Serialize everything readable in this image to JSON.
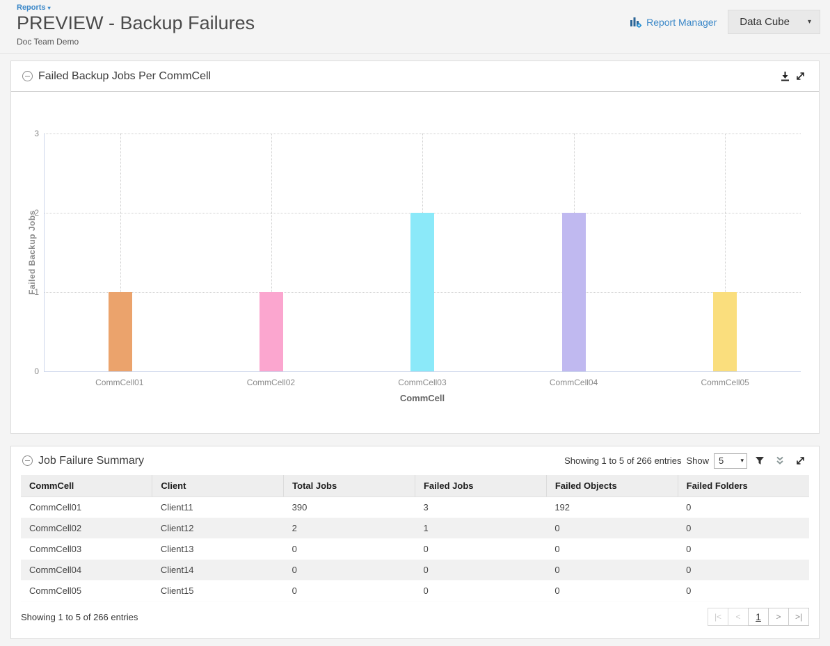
{
  "page": {
    "breadcrumb": "Reports",
    "title": "PREVIEW - Backup Failures",
    "subtitle": "Doc Team Demo",
    "report_manager_label": "Report Manager",
    "data_cube_label": "Data Cube"
  },
  "icons": {
    "breadcrumb_caret": "▾",
    "data_cube_caret": "▾",
    "select_caret": "▾",
    "pagination_first": "|<",
    "pagination_prev": "<",
    "pagination_next": ">",
    "pagination_last": ">|"
  },
  "colors": {
    "accent_blue": "#3a87c8",
    "axis_line": "#ccd6eb",
    "gridline": "#cfcfcf"
  },
  "chart_panel": {
    "title": "Failed Backup Jobs Per CommCell"
  },
  "chart_data": {
    "type": "bar",
    "title": "Failed Backup Jobs Per CommCell",
    "categories": [
      "CommCell01",
      "CommCell02",
      "CommCell03",
      "CommCell04",
      "CommCell05"
    ],
    "values": [
      1,
      1,
      2,
      2,
      1
    ],
    "bar_colors": [
      "#eba36c",
      "#fba6cf",
      "#8be9f9",
      "#c0b9f0",
      "#fade7d"
    ],
    "xlabel": "CommCell",
    "ylabel": "Failed Backup Jobs",
    "ylim": [
      0,
      3
    ],
    "yticks": [
      0,
      1,
      2,
      3
    ],
    "grid": "dotted"
  },
  "table_panel": {
    "title": "Job Failure Summary",
    "showing_text": "Showing 1 to 5 of 266 entries",
    "show_label": "Show",
    "page_size": "5",
    "columns": [
      "CommCell",
      "Client",
      "Total Jobs",
      "Failed Jobs",
      "Failed Objects",
      "Failed Folders"
    ],
    "rows": [
      [
        "CommCell01",
        "Client11",
        "390",
        "3",
        "192",
        "0"
      ],
      [
        "CommCell02",
        "Client12",
        "2",
        "1",
        "0",
        "0"
      ],
      [
        "CommCell03",
        "Client13",
        "0",
        "0",
        "0",
        "0"
      ],
      [
        "CommCell04",
        "Client14",
        "0",
        "0",
        "0",
        "0"
      ],
      [
        "CommCell05",
        "Client15",
        "0",
        "0",
        "0",
        "0"
      ]
    ],
    "footer_showing_text": "Showing 1 to 5 of 266 entries",
    "pagination": {
      "current_page": "1"
    }
  }
}
